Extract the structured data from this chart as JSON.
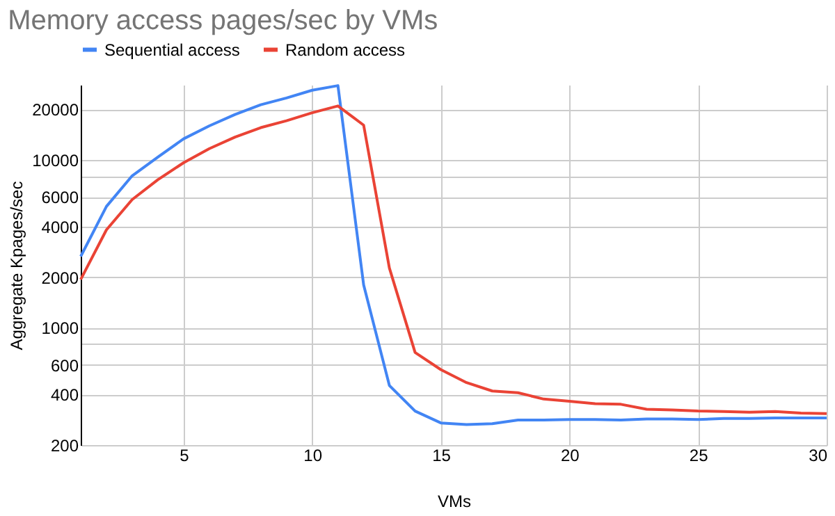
{
  "chart_data": {
    "type": "line",
    "title": "Memory access pages/sec by VMs",
    "xlabel": "VMs",
    "ylabel": "Aggregate Kpages/sec",
    "x": [
      1,
      2,
      3,
      4,
      5,
      6,
      7,
      8,
      9,
      10,
      11,
      12,
      13,
      14,
      15,
      16,
      17,
      18,
      19,
      20,
      21,
      22,
      23,
      24,
      25,
      26,
      27,
      28,
      29,
      30
    ],
    "series": [
      {
        "name": "Sequential access",
        "color": "#4285f4",
        "values": [
          2660,
          5280,
          8040,
          10400,
          13350,
          15950,
          18650,
          21300,
          23400,
          26000,
          27700,
          1800,
          453,
          319,
          271,
          265,
          268,
          282,
          282,
          284,
          284,
          282,
          286,
          286,
          284,
          288,
          288,
          290,
          290,
          290
        ]
      },
      {
        "name": "Random access",
        "color": "#ea4335",
        "values": [
          1940,
          3830,
          5800,
          7620,
          9620,
          11670,
          13670,
          15570,
          17100,
          19100,
          20960,
          16100,
          2270,
          712,
          563,
          471,
          420,
          410,
          376,
          365,
          353,
          350,
          327,
          324,
          319,
          317,
          314,
          317,
          310,
          308
        ]
      }
    ],
    "xlim": [
      1,
      30
    ],
    "xticks": [
      5,
      10,
      15,
      20,
      25,
      30
    ],
    "ylim": [
      200,
      28000
    ],
    "yticks": [
      200,
      400,
      600,
      {
        "value": 800,
        "label": null
      },
      1000,
      2000,
      4000,
      6000,
      {
        "value": 8000,
        "label": null
      },
      10000,
      20000
    ],
    "log": "y",
    "grid": true,
    "legend": "top",
    "marker": "none",
    "line_style": "solid"
  }
}
